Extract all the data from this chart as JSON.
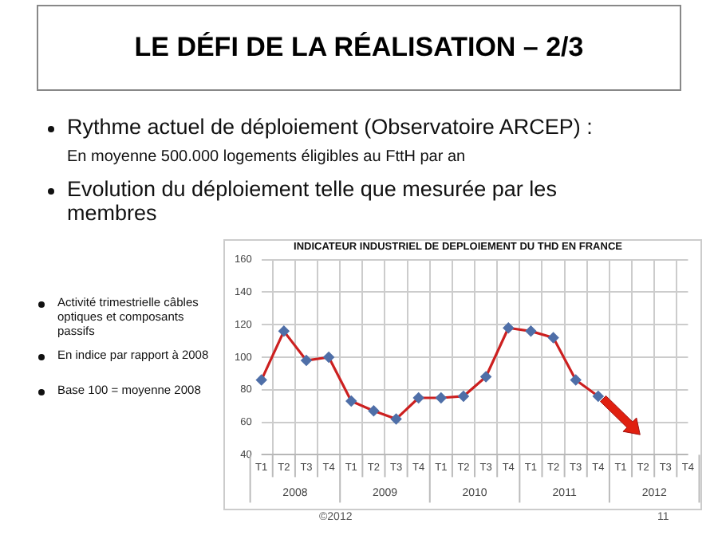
{
  "chart_data": {
    "type": "line",
    "title": "LE DÉFI DE LA RÉALISATION – 2/3",
    "subtitle": "INDICATEUR INDUSTRIEL DE DEPLOIEMENT DU THD EN FRANCE",
    "categories": [
      "T1",
      "T2",
      "T3",
      "T4",
      "T1",
      "T2",
      "T3",
      "T4",
      "T1",
      "T2",
      "T3",
      "T4",
      "T1",
      "T2",
      "T3",
      "T4",
      "T1",
      "T2",
      "T3",
      "T4"
    ],
    "series": [
      {
        "color": "#cc2020",
        "values": [
          86,
          116,
          98,
          100,
          73,
          67,
          62,
          75,
          75,
          76,
          88,
          118,
          116,
          112,
          86,
          76,
          null,
          null,
          null,
          null
        ]
      }
    ],
    "ylim": [
      40,
      160
    ],
    "yticks": [
      40,
      60,
      80,
      100,
      120,
      140,
      160
    ],
    "grid": true,
    "legend": false,
    "marker": "diamond",
    "annotations": [
      "2008",
      "2009",
      "2010",
      "2011",
      "2012",
      "Rythme actuel de déploiement (Observatoire ARCEP) :",
      "En moyenne 500.000 logements éligibles au FttH par an",
      "Evolution du déploiement telle que mesurée par les membres",
      "Activité trimestrielle câbles optiques et composants passifs",
      "En indice par rapport à 2008",
      "Base 100 = moyenne 2008",
      "©2012",
      "11"
    ]
  }
}
